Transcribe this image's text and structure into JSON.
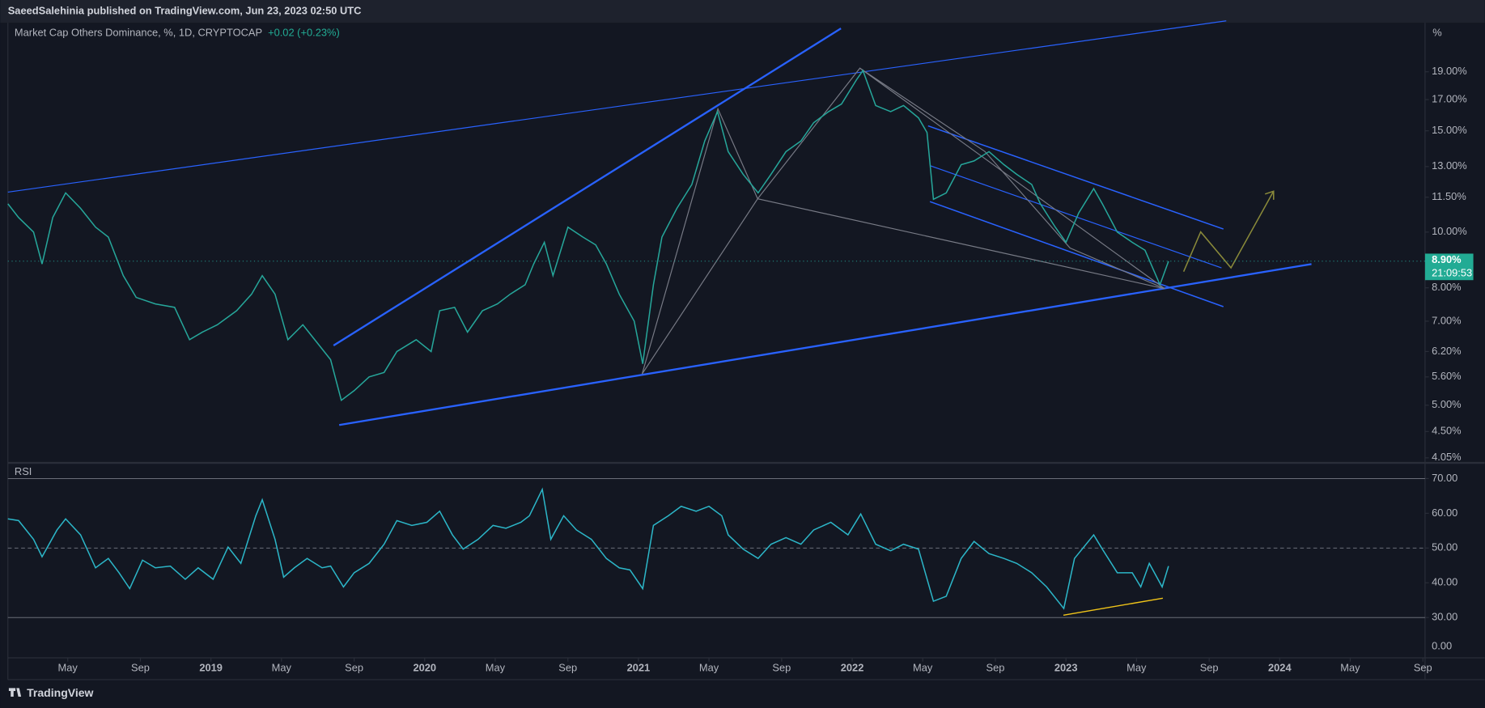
{
  "header": {
    "publisher": "SaeedSalehinia published on TradingView.com, Jun 23, 2023 02:50 UTC"
  },
  "footer": {
    "brand": "TradingView"
  },
  "chart_data": [
    {
      "type": "line",
      "title": "Market Cap Others Dominance, %, 1D, CRYPTOCAP",
      "change_label": "+0.02 (+0.23%)",
      "y_unit": "%",
      "log_scale": true,
      "color": "#26a69a",
      "last_value": 8.9,
      "last_label": "8.90%",
      "countdown": "21:09:53",
      "xlim": [
        2018.05,
        2024.68
      ],
      "ylim": [
        4.0,
        23.3
      ],
      "yticks": [
        {
          "value": 4.05,
          "label": "4.05%"
        },
        {
          "value": 4.5,
          "label": "4.50%"
        },
        {
          "value": 5,
          "label": "5.00%"
        },
        {
          "value": 5.6,
          "label": "5.60%"
        },
        {
          "value": 6.2,
          "label": "6.20%"
        },
        {
          "value": 7,
          "label": "7.00%"
        },
        {
          "value": 8,
          "label": "8.00%"
        },
        {
          "value": 10,
          "label": "10.00%"
        },
        {
          "value": 11.5,
          "label": "11.50%"
        },
        {
          "value": 13,
          "label": "13.00%"
        },
        {
          "value": 15,
          "label": "15.00%"
        },
        {
          "value": 17,
          "label": "17.00%"
        },
        {
          "value": 19,
          "label": "19.00%"
        }
      ],
      "x": [
        2018.05,
        2018.1,
        2018.17,
        2018.21,
        2018.26,
        2018.32,
        2018.39,
        2018.46,
        2018.52,
        2018.59,
        2018.65,
        2018.74,
        2018.83,
        2018.9,
        2018.96,
        2019.03,
        2019.12,
        2019.19,
        2019.24,
        2019.3,
        2019.36,
        2019.43,
        2019.5,
        2019.56,
        2019.61,
        2019.67,
        2019.74,
        2019.81,
        2019.87,
        2019.96,
        2020.03,
        2020.07,
        2020.14,
        2020.2,
        2020.27,
        2020.34,
        2020.4,
        2020.47,
        2020.51,
        2020.56,
        2020.6,
        2020.67,
        2020.74,
        2020.8,
        2020.85,
        2020.91,
        2020.98,
        2021.02,
        2021.07,
        2021.11,
        2021.18,
        2021.25,
        2021.31,
        2021.37,
        2021.42,
        2021.49,
        2021.56,
        2021.62,
        2021.69,
        2021.76,
        2021.82,
        2021.89,
        2021.95,
        2022.02,
        2022.05,
        2022.11,
        2022.18,
        2022.24,
        2022.31,
        2022.35,
        2022.38,
        2022.44,
        2022.51,
        2022.57,
        2022.64,
        2022.71,
        2022.77,
        2022.84,
        2022.88,
        2022.95,
        2023.0,
        2023.06,
        2023.13,
        2023.17,
        2023.24,
        2023.31,
        2023.37,
        2023.44,
        2023.48
      ],
      "values": [
        11.2,
        10.6,
        10.0,
        8.8,
        10.6,
        11.7,
        11.0,
        10.2,
        9.8,
        8.4,
        7.7,
        7.5,
        7.4,
        6.5,
        6.7,
        6.9,
        7.3,
        7.8,
        8.4,
        7.8,
        6.5,
        6.9,
        6.4,
        6.0,
        5.1,
        5.3,
        5.6,
        5.7,
        6.2,
        6.5,
        6.2,
        7.3,
        7.4,
        6.7,
        7.3,
        7.5,
        7.8,
        8.1,
        8.8,
        9.6,
        8.4,
        10.2,
        9.8,
        9.5,
        8.8,
        7.8,
        7.0,
        5.9,
        8.1,
        9.8,
        11.0,
        12.1,
        14.4,
        16.2,
        13.8,
        12.6,
        11.7,
        12.6,
        13.8,
        14.4,
        15.5,
        16.2,
        16.7,
        18.4,
        19.1,
        16.6,
        16.2,
        16.6,
        15.8,
        14.9,
        11.4,
        11.7,
        13.1,
        13.3,
        13.8,
        13.1,
        12.6,
        12.1,
        11.2,
        10.2,
        9.6,
        10.8,
        11.9,
        11.2,
        10.0,
        9.6,
        9.3,
        8.1,
        8.9
      ]
    },
    {
      "type": "line",
      "title": "RSI",
      "color": "#2cb6c8",
      "xlim": [
        2018.05,
        2024.68
      ],
      "ylim": [
        18.4,
        73.7
      ],
      "bands": [
        30,
        70
      ],
      "midline": 50,
      "scale_floor_label": "0.00",
      "yticks": [
        {
          "value": 70,
          "label": "70.00"
        },
        {
          "value": 60,
          "label": "60.00"
        },
        {
          "value": 50,
          "label": "50.00"
        },
        {
          "value": 40,
          "label": "40.00"
        },
        {
          "value": 30,
          "label": "30.00"
        }
      ],
      "xticks": [
        {
          "value": 2018.33,
          "label": "May"
        },
        {
          "value": 2018.67,
          "label": "Sep"
        },
        2019,
        {
          "value": 2019.33,
          "label": "May"
        },
        {
          "value": 2019.67,
          "label": "Sep"
        },
        2020,
        {
          "value": 2020.33,
          "label": "May"
        },
        {
          "value": 2020.67,
          "label": "Sep"
        },
        2021,
        {
          "value": 2021.33,
          "label": "May"
        },
        {
          "value": 2021.67,
          "label": "Sep"
        },
        2022,
        {
          "value": 2022.33,
          "label": "May"
        },
        {
          "value": 2022.67,
          "label": "Sep"
        },
        2023,
        {
          "value": 2023.33,
          "label": "May"
        },
        {
          "value": 2023.67,
          "label": "Sep"
        },
        2024,
        {
          "value": 2024.33,
          "label": "May"
        },
        {
          "value": 2024.67,
          "label": "Sep"
        }
      ],
      "x": [
        2018.05,
        2018.1,
        2018.17,
        2018.21,
        2018.28,
        2018.32,
        2018.39,
        2018.46,
        2018.52,
        2018.57,
        2018.62,
        2018.68,
        2018.74,
        2018.81,
        2018.88,
        2018.94,
        2019.01,
        2019.08,
        2019.14,
        2019.21,
        2019.24,
        2019.3,
        2019.34,
        2019.39,
        2019.45,
        2019.52,
        2019.56,
        2019.62,
        2019.67,
        2019.74,
        2019.81,
        2019.87,
        2019.94,
        2020.01,
        2020.07,
        2020.13,
        2020.18,
        2020.25,
        2020.32,
        2020.38,
        2020.45,
        2020.49,
        2020.55,
        2020.59,
        2020.65,
        2020.71,
        2020.78,
        2020.85,
        2020.91,
        2020.96,
        2021.02,
        2021.07,
        2021.14,
        2021.2,
        2021.27,
        2021.33,
        2021.39,
        2021.42,
        2021.49,
        2021.56,
        2021.62,
        2021.69,
        2021.76,
        2021.82,
        2021.9,
        2021.98,
        2022.04,
        2022.11,
        2022.18,
        2022.24,
        2022.31,
        2022.38,
        2022.44,
        2022.51,
        2022.57,
        2022.64,
        2022.71,
        2022.77,
        2022.84,
        2022.91,
        2022.99,
        2023.04,
        2023.13,
        2023.17,
        2023.24,
        2023.31,
        2023.35,
        2023.39,
        2023.45,
        2023.48
      ],
      "values": [
        58.4,
        57.9,
        52.5,
        47.5,
        55.2,
        58.4,
        53.8,
        44.3,
        47.0,
        42.9,
        38.3,
        46.5,
        44.3,
        44.8,
        41.0,
        44.3,
        41.0,
        50.3,
        45.6,
        59.3,
        63.9,
        52.5,
        41.6,
        44.3,
        47.0,
        44.3,
        44.8,
        38.8,
        42.9,
        45.6,
        51.1,
        57.9,
        56.5,
        57.4,
        60.6,
        53.8,
        49.7,
        52.5,
        56.5,
        55.7,
        57.4,
        59.3,
        66.9,
        52.5,
        59.3,
        55.2,
        52.5,
        47.0,
        44.3,
        43.7,
        38.3,
        56.5,
        59.3,
        62.0,
        60.6,
        62.0,
        59.3,
        53.8,
        49.7,
        47.0,
        51.1,
        53.0,
        51.1,
        55.2,
        57.4,
        53.8,
        59.8,
        51.1,
        49.2,
        51.1,
        49.7,
        34.7,
        36.1,
        47.0,
        51.9,
        48.4,
        47.0,
        45.6,
        42.9,
        38.8,
        32.6,
        47.0,
        53.8,
        49.7,
        42.9,
        42.9,
        38.8,
        45.6,
        38.8,
        44.8
      ]
    }
  ]
}
